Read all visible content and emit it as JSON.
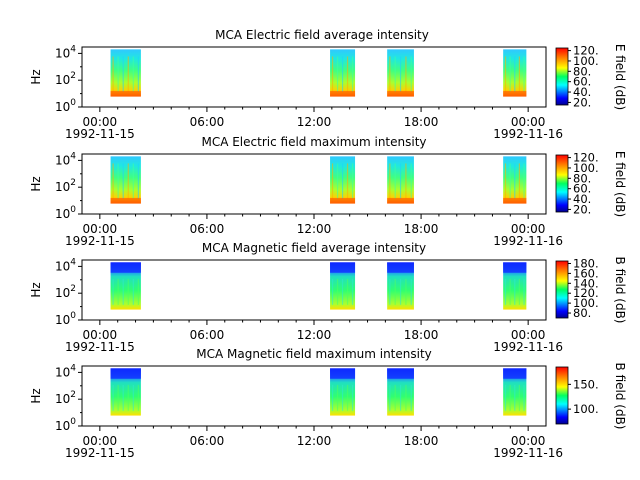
{
  "chart_data": [
    {
      "type": "heatmap",
      "title": "MCA  Electric field average intensity",
      "ylabel": "Hz",
      "colorbar_label": "E field (dB)",
      "colorbar_ticks": [
        "20.",
        "40.",
        "60.",
        "80.",
        "100.",
        "120."
      ],
      "clim": [
        15,
        125
      ],
      "y_tick_labels": [
        "10^0",
        "10^2",
        "10^4"
      ],
      "ylim": [
        1,
        30000
      ],
      "x_tick_labels": [
        "00:00",
        "06:00",
        "12:00",
        "18:00",
        "00:00"
      ],
      "x_date_labels": [
        "1992-11-15",
        "1992-11-16"
      ],
      "xlim_hours": [
        -1,
        25
      ],
      "data_intervals_hours": [
        [
          0.6,
          2.3
        ],
        [
          12.9,
          14.3
        ],
        [
          16.1,
          17.6
        ],
        [
          22.6,
          23.9
        ]
      ],
      "freq_range": [
        6,
        20000
      ]
    },
    {
      "type": "heatmap",
      "title": "MCA  Electric field maximum intensity",
      "ylabel": "Hz",
      "colorbar_label": "E field (dB)",
      "colorbar_ticks": [
        "20.",
        "40.",
        "60.",
        "80.",
        "100.",
        "120."
      ],
      "clim": [
        15,
        125
      ],
      "y_tick_labels": [
        "10^0",
        "10^2",
        "10^4"
      ],
      "ylim": [
        1,
        30000
      ],
      "x_tick_labels": [
        "00:00",
        "06:00",
        "12:00",
        "18:00",
        "00:00"
      ],
      "x_date_labels": [
        "1992-11-15",
        "1992-11-16"
      ],
      "xlim_hours": [
        -1,
        25
      ],
      "data_intervals_hours": [
        [
          0.6,
          2.3
        ],
        [
          12.9,
          14.3
        ],
        [
          16.1,
          17.6
        ],
        [
          22.6,
          23.9
        ]
      ],
      "freq_range": [
        6,
        20000
      ]
    },
    {
      "type": "heatmap",
      "title": "MCA  Magnetic field average intensity",
      "ylabel": "Hz",
      "colorbar_label": "B field (dB)",
      "colorbar_ticks": [
        "80.",
        "100.",
        "120.",
        "140.",
        "160.",
        "180."
      ],
      "clim": [
        70,
        185
      ],
      "y_tick_labels": [
        "10^0",
        "10^2",
        "10^4"
      ],
      "ylim": [
        1,
        30000
      ],
      "x_tick_labels": [
        "00:00",
        "06:00",
        "12:00",
        "18:00",
        "00:00"
      ],
      "x_date_labels": [
        "1992-11-15",
        "1992-11-16"
      ],
      "xlim_hours": [
        -1,
        25
      ],
      "data_intervals_hours": [
        [
          0.6,
          2.3
        ],
        [
          12.9,
          14.3
        ],
        [
          16.1,
          17.6
        ],
        [
          22.6,
          23.9
        ]
      ],
      "freq_range": [
        6,
        20000
      ]
    },
    {
      "type": "heatmap",
      "title": "MCA  Magnetic field maximum intensity",
      "ylabel": "Hz",
      "colorbar_label": "B field (dB)",
      "colorbar_ticks": [
        "100.",
        "150."
      ],
      "clim": [
        70,
        185
      ],
      "y_tick_labels": [
        "10^0",
        "10^2",
        "10^4"
      ],
      "ylim": [
        1,
        30000
      ],
      "x_tick_labels": [
        "00:00",
        "06:00",
        "12:00",
        "18:00",
        "00:00"
      ],
      "x_date_labels": [
        "1992-11-15",
        "1992-11-16"
      ],
      "xlim_hours": [
        -1,
        25
      ],
      "data_intervals_hours": [
        [
          0.6,
          2.3
        ],
        [
          12.9,
          14.3
        ],
        [
          16.1,
          17.6
        ],
        [
          22.6,
          23.9
        ]
      ],
      "freq_range": [
        6,
        20000
      ]
    }
  ]
}
